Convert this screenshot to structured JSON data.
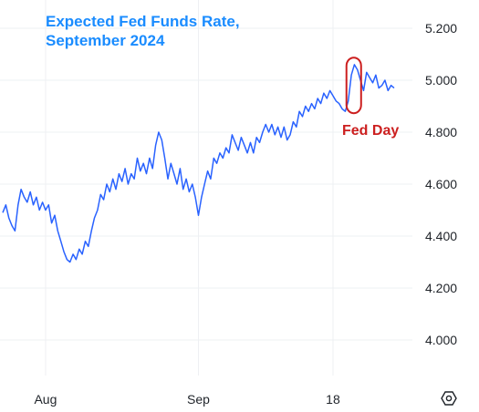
{
  "chart_data": {
    "type": "line",
    "title_lines": [
      "Expected Fed Funds Rate,",
      "September 2024"
    ],
    "xlabel": "",
    "ylabel": "",
    "ylim": [
      3.85,
      5.25
    ],
    "y_ticks": [
      4.0,
      4.2,
      4.4,
      4.6,
      4.8,
      5.0,
      5.2
    ],
    "y_tick_labels": [
      "4.000",
      "4.200",
      "4.400",
      "4.600",
      "4.800",
      "5.000",
      "5.200"
    ],
    "x_ticks": [
      {
        "label": "Aug",
        "t": 7
      },
      {
        "label": "Sep",
        "t": 32
      },
      {
        "label": "18",
        "t": 54
      }
    ],
    "grid": true,
    "line_color": "#2962ff",
    "series": [
      {
        "points": [
          [
            0,
            4.49
          ],
          [
            0.5,
            4.52
          ],
          [
            1,
            4.47
          ],
          [
            1.5,
            4.44
          ],
          [
            2,
            4.42
          ],
          [
            2.5,
            4.52
          ],
          [
            3,
            4.58
          ],
          [
            3.5,
            4.55
          ],
          [
            4,
            4.53
          ],
          [
            4.5,
            4.57
          ],
          [
            5,
            4.52
          ],
          [
            5.5,
            4.55
          ],
          [
            6,
            4.5
          ],
          [
            6.5,
            4.53
          ],
          [
            7,
            4.5
          ],
          [
            7.5,
            4.52
          ],
          [
            8,
            4.45
          ],
          [
            8.5,
            4.48
          ],
          [
            9,
            4.42
          ],
          [
            9.5,
            4.38
          ],
          [
            10,
            4.34
          ],
          [
            10.5,
            4.31
          ],
          [
            11,
            4.3
          ],
          [
            11.5,
            4.33
          ],
          [
            12,
            4.31
          ],
          [
            12.5,
            4.35
          ],
          [
            13,
            4.33
          ],
          [
            13.5,
            4.38
          ],
          [
            14,
            4.36
          ],
          [
            14.5,
            4.42
          ],
          [
            15,
            4.47
          ],
          [
            15.5,
            4.5
          ],
          [
            16,
            4.56
          ],
          [
            16.5,
            4.54
          ],
          [
            17,
            4.6
          ],
          [
            17.5,
            4.57
          ],
          [
            18,
            4.62
          ],
          [
            18.5,
            4.58
          ],
          [
            19,
            4.64
          ],
          [
            19.5,
            4.61
          ],
          [
            20,
            4.66
          ],
          [
            20.5,
            4.6
          ],
          [
            21,
            4.64
          ],
          [
            21.5,
            4.62
          ],
          [
            22,
            4.7
          ],
          [
            22.5,
            4.65
          ],
          [
            23,
            4.68
          ],
          [
            23.5,
            4.64
          ],
          [
            24,
            4.7
          ],
          [
            24.5,
            4.66
          ],
          [
            25,
            4.75
          ],
          [
            25.5,
            4.8
          ],
          [
            26,
            4.77
          ],
          [
            26.5,
            4.7
          ],
          [
            27,
            4.62
          ],
          [
            27.5,
            4.68
          ],
          [
            28,
            4.64
          ],
          [
            28.5,
            4.6
          ],
          [
            29,
            4.66
          ],
          [
            29.5,
            4.58
          ],
          [
            30,
            4.62
          ],
          [
            30.5,
            4.57
          ],
          [
            31,
            4.6
          ],
          [
            31.5,
            4.55
          ],
          [
            32,
            4.48
          ],
          [
            32.5,
            4.55
          ],
          [
            33,
            4.6
          ],
          [
            33.5,
            4.65
          ],
          [
            34,
            4.62
          ],
          [
            34.5,
            4.7
          ],
          [
            35,
            4.68
          ],
          [
            35.5,
            4.72
          ],
          [
            36,
            4.7
          ],
          [
            36.5,
            4.74
          ],
          [
            37,
            4.72
          ],
          [
            37.5,
            4.79
          ],
          [
            38,
            4.76
          ],
          [
            38.5,
            4.73
          ],
          [
            39,
            4.78
          ],
          [
            39.5,
            4.75
          ],
          [
            40,
            4.72
          ],
          [
            40.5,
            4.76
          ],
          [
            41,
            4.72
          ],
          [
            41.5,
            4.78
          ],
          [
            42,
            4.76
          ],
          [
            42.5,
            4.8
          ],
          [
            43,
            4.83
          ],
          [
            43.5,
            4.8
          ],
          [
            44,
            4.83
          ],
          [
            44.5,
            4.79
          ],
          [
            45,
            4.82
          ],
          [
            45.5,
            4.78
          ],
          [
            46,
            4.82
          ],
          [
            46.5,
            4.77
          ],
          [
            47,
            4.79
          ],
          [
            47.5,
            4.84
          ],
          [
            48,
            4.82
          ],
          [
            48.5,
            4.88
          ],
          [
            49,
            4.86
          ],
          [
            49.5,
            4.9
          ],
          [
            50,
            4.88
          ],
          [
            50.5,
            4.91
          ],
          [
            51,
            4.89
          ],
          [
            51.5,
            4.93
          ],
          [
            52,
            4.91
          ],
          [
            52.5,
            4.95
          ],
          [
            53,
            4.93
          ],
          [
            53.5,
            4.96
          ],
          [
            54,
            4.94
          ],
          [
            54.5,
            4.92
          ],
          [
            55,
            4.91
          ],
          [
            55.5,
            4.89
          ],
          [
            56,
            4.88
          ],
          [
            56.5,
            4.92
          ],
          [
            57,
            5.02
          ],
          [
            57.5,
            5.06
          ],
          [
            58,
            5.04
          ],
          [
            58.5,
            5.0
          ],
          [
            59,
            4.96
          ],
          [
            59.5,
            5.03
          ],
          [
            60,
            5.01
          ],
          [
            60.5,
            4.99
          ],
          [
            61,
            5.02
          ],
          [
            61.5,
            4.97
          ],
          [
            62,
            4.98
          ],
          [
            62.5,
            5.0
          ],
          [
            63,
            4.96
          ],
          [
            63.5,
            4.98
          ],
          [
            64,
            4.97
          ]
        ]
      }
    ],
    "annotations": [
      {
        "text": "Fed Day",
        "color": "#cc1f1f",
        "highlight_t": [
          56.5,
          58
        ],
        "highlight_y": [
          4.88,
          5.08
        ]
      }
    ]
  }
}
